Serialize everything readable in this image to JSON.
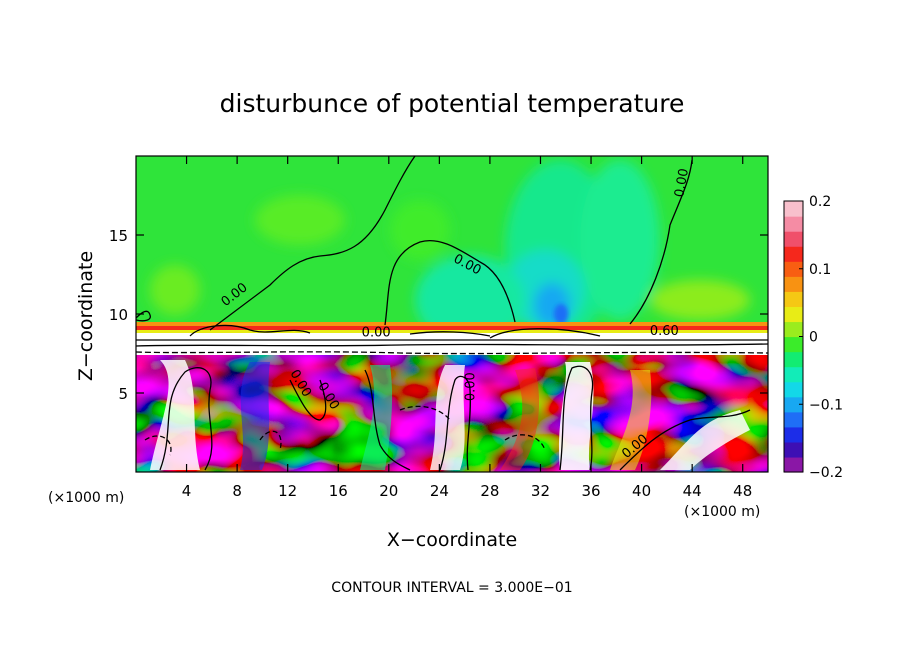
{
  "chart_data": {
    "type": "heatmap",
    "title": "disturbunce of potential temperature",
    "xlabel": "X−coordinate",
    "ylabel": "Z−coordinate",
    "x_unit_left": "(×1000 m)",
    "x_unit_right": "(×1000 m)",
    "xlim": [
      0,
      50
    ],
    "ylim": [
      0,
      20
    ],
    "x_ticks": [
      4,
      8,
      12,
      16,
      20,
      24,
      28,
      32,
      36,
      40,
      44,
      48
    ],
    "x_tick_labels": [
      "4",
      "8",
      "12",
      "16",
      "20",
      "24",
      "28",
      "32",
      "36",
      "40",
      "44",
      "48"
    ],
    "y_ticks": [
      5,
      10,
      15
    ],
    "y_tick_labels": [
      "5",
      "10",
      "15"
    ],
    "contour_labels": [
      {
        "text": "0.00",
        "x": 7.8,
        "y": 11.2,
        "angle": -38
      },
      {
        "text": "0.00",
        "x": 26.2,
        "y": 13.1,
        "angle": 28
      },
      {
        "text": "0.00",
        "x": 43.2,
        "y": 18.3,
        "angle": -80
      },
      {
        "text": "0.00",
        "x": 13.0,
        "y": 5.6,
        "angle": 60
      },
      {
        "text": "0.00",
        "x": 15.2,
        "y": 4.8,
        "angle": 60
      },
      {
        "text": "0.00",
        "x": 26.5,
        "y": 5.4,
        "angle": -90
      },
      {
        "text": "0.00",
        "x": 39.5,
        "y": 1.6,
        "angle": -40
      },
      {
        "text": "0.00",
        "x": 19.0,
        "y": 8.8,
        "angle": 0
      },
      {
        "text": "0.60",
        "x": 41.8,
        "y": 8.9,
        "angle": 0
      }
    ],
    "colorbar": {
      "min": -0.2,
      "max": 0.2,
      "tick_labels": [
        "0.2",
        "0.1",
        "0",
        "−0.1",
        "−0.2"
      ],
      "tick_values": [
        0.2,
        0.1,
        0,
        -0.1,
        -0.2
      ],
      "colors": [
        "#8a17a6",
        "#3d0fb4",
        "#1c2de8",
        "#1f6ef6",
        "#18a8f2",
        "#13d8e8",
        "#12ecb8",
        "#12ec72",
        "#3bec2a",
        "#9aec1e",
        "#e8ec16",
        "#f5c814",
        "#f89212",
        "#f85e12",
        "#f5281c",
        "#f0506a",
        "#f58ca4",
        "#f8c0cc"
      ]
    },
    "grid": false,
    "footer": "CONTOUR INTERVAL = 3.000E−01"
  }
}
